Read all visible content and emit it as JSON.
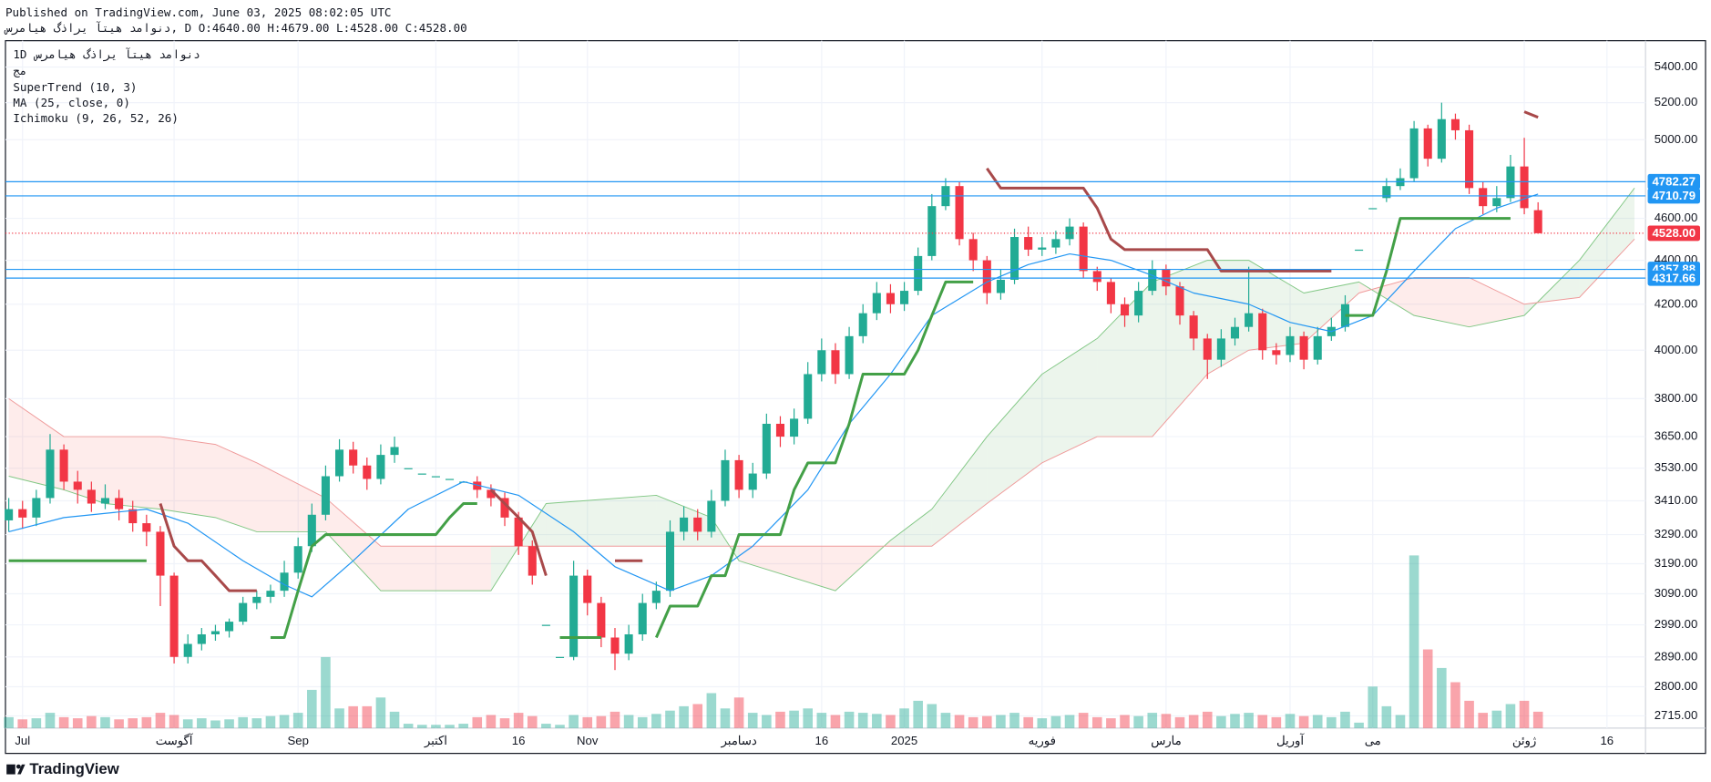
{
  "chart_data": {
    "type": "candlestick",
    "published": "Published on TradingView.com, June 03, 2025 08:02:05 UTC",
    "symbol_line": "دنوامد هیتآ یراذگ هیامرس, D O:4640.00 H:4679.00 L:4528.00 C:4528.00",
    "interval": "1D",
    "symbol": "دنوامد هیتآ یراذگ هیامرس",
    "exchange": "مج",
    "indicators": [
      "SuperTrend (10, 3)",
      "MA (25, close, 0)",
      "Ichimoku (9, 26, 52, 26)"
    ],
    "footer": "TradingView",
    "log_scale": true,
    "grid": true,
    "up_color": "#22ab94",
    "down_color": "#f23645",
    "xlim": [
      -0.24,
      118.8
    ],
    "ylim": [
      2680,
      5553
    ],
    "xticks": [
      {
        "value": 1,
        "label": "Jul"
      },
      {
        "value": 12,
        "label": "آگوست"
      },
      {
        "value": 21,
        "label": "Sep"
      },
      {
        "value": 31,
        "label": "اکتبر"
      },
      {
        "value": 37,
        "label": "16"
      },
      {
        "value": 42,
        "label": "Nov"
      },
      {
        "value": 53,
        "label": "دسامبر"
      },
      {
        "value": 59,
        "label": "16"
      },
      {
        "value": 65,
        "label": "2025"
      },
      {
        "value": 75,
        "label": "فوریه"
      },
      {
        "value": 84,
        "label": "مارس"
      },
      {
        "value": 93,
        "label": "آوریل"
      },
      {
        "value": 99,
        "label": "می"
      },
      {
        "value": 110,
        "label": "ژوئن"
      },
      {
        "value": 116,
        "label": "16"
      }
    ],
    "yticks": [
      {
        "value": 5400,
        "label": "5400.00"
      },
      {
        "value": 5200,
        "label": "5200.00"
      },
      {
        "value": 5000,
        "label": "5000.00"
      },
      {
        "value": 4600,
        "label": "4600.00"
      },
      {
        "value": 4400,
        "label": "4400.00"
      },
      {
        "value": 4200,
        "label": "4200.00"
      },
      {
        "value": 4000,
        "label": "4000.00"
      },
      {
        "value": 3800,
        "label": "3800.00"
      },
      {
        "value": 3650,
        "label": "3650.00"
      },
      {
        "value": 3530,
        "label": "3530.00"
      },
      {
        "value": 3410,
        "label": "3410.00"
      },
      {
        "value": 3290,
        "label": "3290.00"
      },
      {
        "value": 3190,
        "label": "3190.00"
      },
      {
        "value": 3090,
        "label": "3090.00"
      },
      {
        "value": 2990,
        "label": "2990.00"
      },
      {
        "value": 2890,
        "label": "2890.00"
      },
      {
        "value": 2800,
        "label": "2800.00"
      },
      {
        "value": 2715,
        "label": "2715.00"
      }
    ],
    "open": [
      3340,
      3380,
      3350,
      3420,
      3600,
      3480,
      3450,
      3400,
      3420,
      3380,
      3330,
      3300,
      3150,
      2890,
      2930,
      2960,
      2970,
      3000,
      3060,
      3080,
      3100,
      3160,
      3250,
      3360,
      3500,
      3600,
      3540,
      3490,
      3580,
      3530,
      3510,
      3500,
      3490,
      3480,
      3480,
      3450,
      3420,
      3350,
      3250,
      2990,
      2890,
      2890,
      3150,
      3060,
      2950,
      2900,
      2960,
      3060,
      3100,
      3300,
      3350,
      3300,
      3410,
      3560,
      3450,
      3510,
      3700,
      3650,
      3720,
      3900,
      4000,
      3900,
      4060,
      4160,
      4250,
      4200,
      4260,
      4420,
      4660,
      4760,
      4500,
      4400,
      4250,
      4310,
      4510,
      4450,
      4460,
      4500,
      4560,
      4350,
      4300,
      4200,
      4150,
      4260,
      4360,
      4280,
      4150,
      4050,
      3960,
      4050,
      4100,
      4160,
      4000,
      3980,
      4060,
      3960,
      4060,
      4100,
      4450,
      4650,
      4700,
      4760,
      4800,
      5060,
      4900,
      5110,
      5050,
      4750,
      4660,
      4700,
      4860,
      4640
    ],
    "high": [
      3420,
      3410,
      3450,
      3660,
      3620,
      3520,
      3480,
      3470,
      3450,
      3410,
      3360,
      3320,
      3160,
      2960,
      2980,
      2990,
      3010,
      3080,
      3100,
      3120,
      3200,
      3280,
      3400,
      3540,
      3640,
      3630,
      3570,
      3620,
      3650,
      3530,
      3510,
      3500,
      3490,
      3480,
      3500,
      3470,
      3440,
      3370,
      3270,
      2990,
      2890,
      3200,
      3170,
      3080,
      2980,
      2990,
      3090,
      3130,
      3340,
      3390,
      3380,
      3450,
      3600,
      3580,
      3550,
      3740,
      3730,
      3760,
      3950,
      4050,
      4030,
      4100,
      4200,
      4300,
      4290,
      4300,
      4460,
      4720,
      4800,
      4780,
      4530,
      4420,
      4360,
      4550,
      4560,
      4510,
      4540,
      4600,
      4580,
      4370,
      4320,
      4230,
      4300,
      4400,
      4380,
      4300,
      4170,
      4070,
      4090,
      4140,
      4370,
      4180,
      4030,
      4100,
      4080,
      4100,
      4140,
      4240,
      4450,
      4650,
      4800,
      4850,
      5100,
      5080,
      5200,
      5140,
      5080,
      4780,
      4760,
      4920,
      5010,
      4679
    ],
    "low": [
      3300,
      3310,
      3320,
      3400,
      3450,
      3400,
      3370,
      3380,
      3340,
      3300,
      3250,
      3050,
      2870,
      2870,
      2910,
      2940,
      2950,
      2990,
      3040,
      3060,
      3080,
      3140,
      3230,
      3340,
      3480,
      3510,
      3450,
      3470,
      3550,
      3530,
      3510,
      3500,
      3490,
      3480,
      3420,
      3390,
      3320,
      3220,
      3120,
      2990,
      2890,
      2880,
      3020,
      2920,
      2850,
      2880,
      2940,
      3040,
      3080,
      3270,
      3270,
      3280,
      3390,
      3420,
      3420,
      3490,
      3610,
      3620,
      3700,
      3870,
      3860,
      3880,
      4030,
      4130,
      4160,
      4170,
      4240,
      4400,
      4640,
      4470,
      4350,
      4200,
      4220,
      4290,
      4420,
      4420,
      4430,
      4470,
      4320,
      4260,
      4160,
      4100,
      4120,
      4240,
      4240,
      4110,
      4000,
      3880,
      3930,
      4020,
      4080,
      3960,
      3940,
      3950,
      3920,
      3940,
      4040,
      4080,
      4450,
      4650,
      4680,
      4740,
      4780,
      4860,
      4880,
      5000,
      4720,
      4620,
      4630,
      4680,
      4620,
      4528
    ],
    "close": [
      3380,
      3350,
      3420,
      3600,
      3480,
      3450,
      3400,
      3420,
      3380,
      3330,
      3300,
      3150,
      2890,
      2930,
      2960,
      2970,
      3000,
      3060,
      3080,
      3100,
      3160,
      3250,
      3360,
      3500,
      3600,
      3540,
      3490,
      3580,
      3610,
      3530,
      3510,
      3500,
      3490,
      3480,
      3450,
      3420,
      3350,
      3250,
      3150,
      2990,
      2890,
      3150,
      3060,
      2950,
      2900,
      2960,
      3060,
      3100,
      3300,
      3350,
      3300,
      3410,
      3560,
      3450,
      3510,
      3700,
      3650,
      3720,
      3900,
      4000,
      3900,
      4060,
      4160,
      4250,
      4200,
      4260,
      4420,
      4660,
      4760,
      4500,
      4400,
      4250,
      4310,
      4510,
      4450,
      4460,
      4500,
      4560,
      4350,
      4300,
      4200,
      4150,
      4260,
      4360,
      4280,
      4150,
      4050,
      3960,
      4050,
      4100,
      4160,
      4000,
      3980,
      4060,
      3960,
      4060,
      4100,
      4200,
      4450,
      4650,
      4760,
      4800,
      5060,
      4900,
      5110,
      5050,
      4750,
      4660,
      4700,
      4860,
      4650,
      4528
    ],
    "volume": [
      10,
      8,
      9,
      14,
      10,
      9,
      11,
      10,
      8,
      9,
      10,
      14,
      12,
      8,
      9,
      7,
      8,
      10,
      9,
      11,
      12,
      14,
      35,
      65,
      18,
      20,
      20,
      28,
      15,
      4,
      3,
      3,
      3,
      4,
      10,
      12,
      9,
      14,
      11,
      4,
      3,
      12,
      10,
      11,
      15,
      12,
      10,
      13,
      16,
      20,
      22,
      32,
      18,
      28,
      14,
      12,
      15,
      16,
      18,
      14,
      12,
      15,
      14,
      13,
      12,
      18,
      25,
      22,
      14,
      12,
      10,
      11,
      12,
      14,
      10,
      9,
      11,
      12,
      14,
      10,
      9,
      12,
      11,
      14,
      13,
      10,
      12,
      15,
      11,
      13,
      14,
      12,
      10,
      13,
      11,
      12,
      10,
      15,
      5,
      38,
      20,
      12,
      158,
      72,
      55,
      42,
      25,
      14,
      16,
      22,
      25,
      15
    ],
    "ma": {
      "color": "#2196f3",
      "x": [
        0,
        4,
        10,
        13,
        17,
        20,
        22,
        25,
        29,
        33,
        37,
        41,
        44,
        48,
        51,
        54,
        58,
        61,
        64,
        67,
        71,
        74,
        77,
        80,
        83,
        86,
        90,
        93,
        96,
        99,
        102,
        105,
        108,
        111
      ],
      "values": [
        3300,
        3350,
        3380,
        3330,
        3200,
        3120,
        3080,
        3200,
        3380,
        3480,
        3430,
        3300,
        3180,
        3100,
        3150,
        3250,
        3450,
        3700,
        3900,
        4150,
        4300,
        4380,
        4430,
        4400,
        4330,
        4250,
        4200,
        4120,
        4080,
        4150,
        4350,
        4550,
        4650,
        4720
      ]
    },
    "supertrend": {
      "up": {
        "color": "#43a047",
        "values": [
          3200,
          3200,
          3200,
          3200,
          3200,
          3200,
          3200,
          3200,
          3200,
          3200,
          3200,
          null,
          null,
          null,
          null,
          null,
          null,
          null,
          null,
          2950,
          2950,
          3100,
          3250,
          3290,
          3290,
          3290,
          3290,
          3290,
          3290,
          3290,
          3290,
          3290,
          3350,
          3400,
          3400,
          null,
          null,
          null,
          null,
          null,
          2950,
          2950,
          2950,
          2950,
          null,
          null,
          null,
          2950,
          3050,
          3050,
          3050,
          3150,
          3150,
          3290,
          3290,
          3290,
          3290,
          3450,
          3550,
          3550,
          3550,
          3700,
          3900,
          3900,
          3900,
          3900,
          4000,
          4150,
          4300,
          4300,
          4300,
          null,
          null,
          null,
          null,
          null,
          null,
          null,
          null,
          null,
          null,
          null,
          null,
          null,
          null,
          null,
          null,
          null,
          null,
          null,
          null,
          null,
          null,
          null,
          null,
          null,
          null,
          4150,
          4150,
          4150,
          4350,
          4600,
          4600,
          4600,
          4600,
          4600,
          4600,
          4600,
          4600,
          4600,
          null,
          null
        ]
      },
      "down": {
        "color": "#a8494a",
        "values": [
          null,
          null,
          null,
          null,
          null,
          null,
          null,
          null,
          null,
          null,
          null,
          3400,
          3250,
          3200,
          3200,
          3150,
          3100,
          3100,
          3100,
          null,
          null,
          null,
          null,
          null,
          null,
          null,
          null,
          null,
          null,
          null,
          null,
          null,
          null,
          null,
          null,
          3450,
          3400,
          3350,
          3300,
          3150,
          null,
          null,
          null,
          null,
          3200,
          3200,
          3200,
          null,
          null,
          null,
          null,
          null,
          null,
          null,
          null,
          null,
          null,
          null,
          null,
          null,
          null,
          null,
          null,
          null,
          null,
          null,
          null,
          null,
          null,
          null,
          null,
          4850,
          4750,
          4750,
          4750,
          4750,
          4750,
          4750,
          4750,
          4650,
          4500,
          4450,
          4450,
          4450,
          4450,
          4450,
          4450,
          4450,
          4350,
          4350,
          4350,
          4350,
          4350,
          4350,
          4350,
          4350,
          4350,
          null,
          null,
          null,
          null,
          null,
          null,
          null,
          null,
          null,
          null,
          null,
          null,
          null,
          5150,
          5120
        ]
      }
    },
    "ichimoku": {
      "span_a_color": "#81c784",
      "span_b_color": "#ef9a9a",
      "x": [
        0,
        4,
        7,
        11,
        15,
        18,
        23,
        27,
        35,
        39,
        47,
        51,
        53,
        60,
        64,
        67,
        71,
        75,
        79,
        83,
        87,
        90,
        94,
        98,
        102,
        106,
        110,
        114,
        118
      ],
      "span_a": [
        3500,
        3450,
        3400,
        3380,
        3350,
        3300,
        3300,
        3100,
        3100,
        3400,
        3430,
        3350,
        3200,
        3100,
        3270,
        3380,
        3650,
        3900,
        4050,
        4300,
        4400,
        4400,
        4250,
        4300,
        4150,
        4100,
        4150,
        4400,
        4750
      ],
      "span_b": [
        3800,
        3650,
        3650,
        3650,
        3620,
        3550,
        3420,
        3250,
        3250,
        3250,
        3250,
        3250,
        3250,
        3250,
        3250,
        3250,
        3400,
        3550,
        3650,
        3650,
        3900,
        4000,
        4030,
        4250,
        4320,
        4320,
        4200,
        4230,
        4500
      ]
    },
    "price_lines": [
      {
        "value": 4782.27,
        "label": "4782.27"
      },
      {
        "value": 4710.79,
        "label": "4710.79"
      },
      {
        "value": 4357.88,
        "label": "4357.88"
      },
      {
        "value": 4317.66,
        "label": "4317.66"
      }
    ],
    "price_line_color": "#2196f3",
    "last_price": {
      "value": 4528,
      "label": "4528.00",
      "color": "#f23645"
    }
  }
}
